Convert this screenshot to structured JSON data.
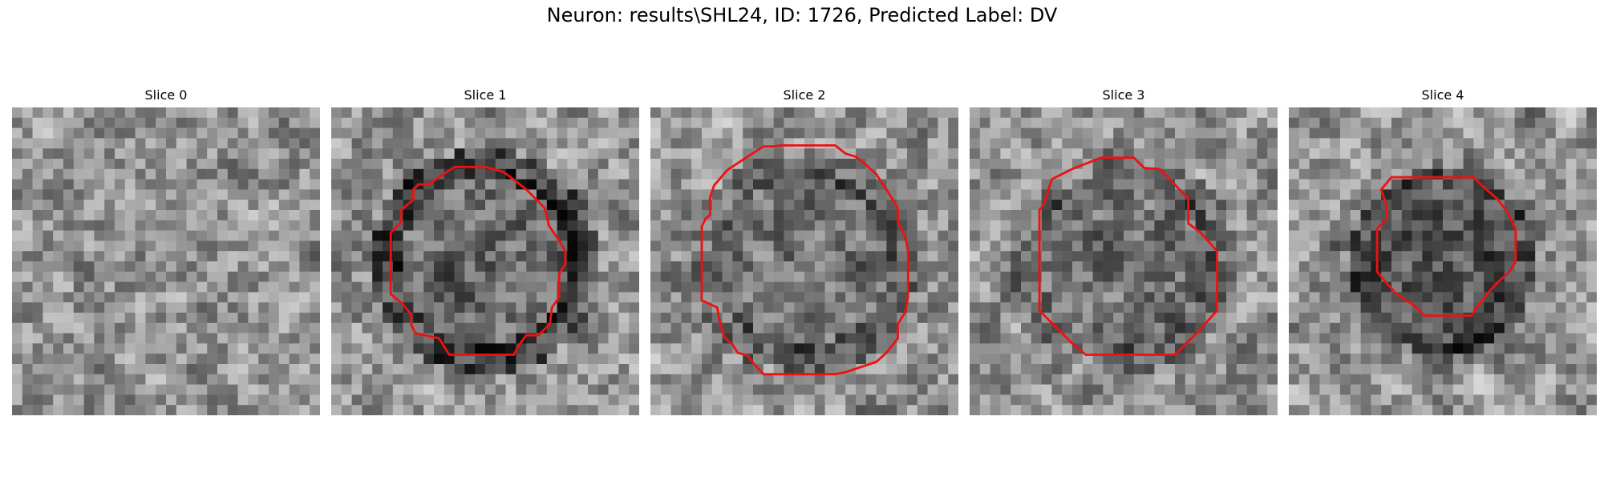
{
  "figure": {
    "title": "Neuron: results\\SHL24, ID: 1726, Predicted Label: DV",
    "contour_color": "#ee1111"
  },
  "panels": [
    {
      "title": "Slice 0",
      "has_contour": false,
      "seed": 11,
      "dark_center": 0.0,
      "ring_dark": 0.0
    },
    {
      "title": "Slice 1",
      "has_contour": true,
      "seed": 23,
      "dark_center": 0.15,
      "ring_dark": 0.35
    },
    {
      "title": "Slice 2",
      "has_contour": true,
      "seed": 37,
      "dark_center": 0.12,
      "ring_dark": 0.2
    },
    {
      "title": "Slice 3",
      "has_contour": true,
      "seed": 41,
      "dark_center": 0.12,
      "ring_dark": 0.15
    },
    {
      "title": "Slice 4",
      "has_contour": true,
      "seed": 59,
      "dark_center": 0.25,
      "ring_dark": 0.1
    }
  ]
}
